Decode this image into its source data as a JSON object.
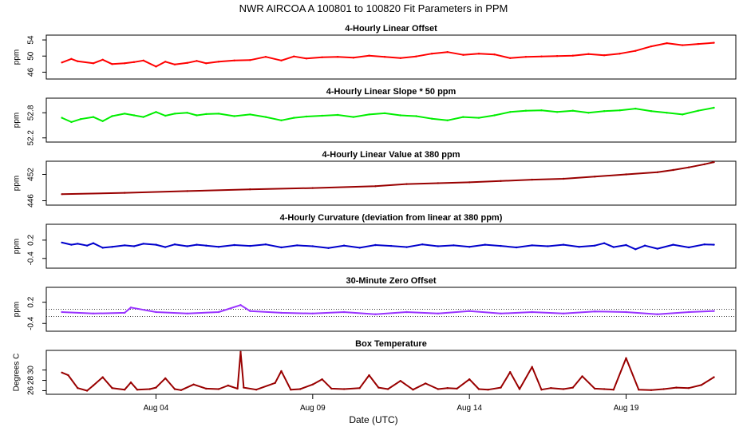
{
  "title": "NWR   AIRCOA A   100801 to 100820   Fit Parameters in PPM",
  "xlabel": "Date (UTC)",
  "x_axis": {
    "ticks": [
      "Aug 04",
      "Aug 09",
      "Aug 14",
      "Aug 19"
    ],
    "tick_days": [
      4,
      9,
      14,
      19
    ],
    "range_days": [
      0.5,
      22.5
    ]
  },
  "chart_data": [
    {
      "type": "line",
      "title": "4-Hourly Linear Offset",
      "ylabel": "ppm",
      "color": "#ff0000",
      "yticks": [
        "46",
        "50",
        "54"
      ],
      "ytick_values": [
        46,
        50,
        54
      ],
      "ylim": [
        44.3,
        55.2
      ],
      "series": [
        {
          "x": [
            1,
            1.3,
            1.5,
            2,
            2.3,
            2.6,
            3,
            3.3,
            3.6,
            4,
            4.3,
            4.6,
            5,
            5.3,
            5.6,
            6,
            6.5,
            7,
            7.5,
            8,
            8.4,
            8.8,
            9.3,
            9.8,
            10.3,
            10.8,
            11.3,
            11.8,
            12.3,
            12.8,
            13.3,
            13.8,
            14.3,
            14.8,
            15.3,
            15.8,
            16.3,
            16.8,
            17.3,
            17.8,
            18.3,
            18.8,
            19.3,
            19.8,
            20.3,
            20.8,
            21.3,
            21.8
          ],
          "y": [
            48.4,
            49.3,
            48.7,
            48.2,
            49.1,
            48.0,
            48.2,
            48.5,
            48.9,
            47.4,
            48.6,
            47.9,
            48.3,
            48.8,
            48.2,
            48.6,
            48.9,
            49.0,
            49.8,
            48.9,
            49.9,
            49.4,
            49.7,
            49.8,
            49.6,
            50.1,
            49.8,
            49.5,
            49.9,
            50.6,
            51.0,
            50.3,
            50.6,
            50.4,
            49.5,
            49.8,
            49.9,
            50.0,
            50.1,
            50.5,
            50.2,
            50.6,
            51.3,
            52.4,
            53.2,
            52.7,
            53.0,
            53.3
          ]
        }
      ]
    },
    {
      "type": "line",
      "title": "4-Hourly Linear Slope * 50 ppm",
      "ylabel": "ppm",
      "color": "#00ee00",
      "yticks": [
        "52.2",
        "52.8"
      ],
      "ytick_values": [
        52.2,
        52.8
      ],
      "ylim": [
        52.1,
        53.15
      ],
      "series": [
        {
          "x": [
            1,
            1.3,
            1.6,
            2,
            2.3,
            2.6,
            3,
            3.3,
            3.6,
            4,
            4.3,
            4.6,
            5,
            5.3,
            5.6,
            6,
            6.5,
            7,
            7.5,
            8,
            8.4,
            8.8,
            9.3,
            9.8,
            10.3,
            10.8,
            11.3,
            11.8,
            12.3,
            12.8,
            13.3,
            13.8,
            14.3,
            14.8,
            15.3,
            15.8,
            16.3,
            16.8,
            17.3,
            17.8,
            18.3,
            18.8,
            19.3,
            19.8,
            20.3,
            20.8,
            21.3,
            21.8
          ],
          "y": [
            52.68,
            52.58,
            52.65,
            52.7,
            52.6,
            52.72,
            52.78,
            52.74,
            52.7,
            52.82,
            52.73,
            52.78,
            52.8,
            52.74,
            52.77,
            52.78,
            52.72,
            52.76,
            52.7,
            52.62,
            52.68,
            52.71,
            52.73,
            52.75,
            52.7,
            52.76,
            52.79,
            52.74,
            52.72,
            52.66,
            52.62,
            52.7,
            52.68,
            52.74,
            52.82,
            52.85,
            52.86,
            52.82,
            52.85,
            52.8,
            52.84,
            52.86,
            52.9,
            52.84,
            52.8,
            52.76,
            52.85,
            52.92
          ]
        }
      ]
    },
    {
      "type": "line",
      "title": "4-Hourly Linear Value at 380 ppm",
      "ylabel": "ppm",
      "color": "#990000",
      "yticks": [
        "446",
        "452"
      ],
      "ytick_values": [
        446,
        452
      ],
      "ylim": [
        445,
        455
      ],
      "series": [
        {
          "x": [
            1,
            3,
            5,
            7,
            9,
            11,
            12,
            13,
            14,
            15,
            16,
            17,
            18,
            19,
            20,
            20.5,
            21,
            21.5,
            21.8
          ],
          "y": [
            447.5,
            447.8,
            448.2,
            448.6,
            448.9,
            449.3,
            449.8,
            450.0,
            450.2,
            450.5,
            450.8,
            451.0,
            451.5,
            452.0,
            452.5,
            453.0,
            453.6,
            454.3,
            454.8
          ]
        }
      ]
    },
    {
      "type": "line",
      "title": "4-Hourly Curvature (deviation from linear at 380 ppm)",
      "ylabel": "ppm",
      "color": "#0000cc",
      "yticks": [
        "-0.4",
        "0.2"
      ],
      "ytick_values": [
        -0.4,
        0.2
      ],
      "ylim": [
        -0.72,
        0.72
      ],
      "series": [
        {
          "x": [
            1,
            1.3,
            1.5,
            1.8,
            2,
            2.3,
            2.6,
            3,
            3.3,
            3.6,
            4,
            4.3,
            4.6,
            5,
            5.3,
            5.6,
            6,
            6.5,
            7,
            7.5,
            8,
            8.5,
            9,
            9.5,
            10,
            10.5,
            11,
            11.5,
            12,
            12.5,
            13,
            13.5,
            14,
            14.5,
            15,
            15.5,
            16,
            16.5,
            17,
            17.5,
            18,
            18.3,
            18.6,
            19,
            19.3,
            19.6,
            20,
            20.5,
            21,
            21.5,
            21.8
          ],
          "y": [
            0.12,
            0.05,
            0.08,
            0.02,
            0.1,
            -0.05,
            -0.02,
            0.03,
            0.0,
            0.08,
            0.05,
            -0.03,
            0.06,
            0.0,
            0.05,
            0.02,
            -0.02,
            0.04,
            0.01,
            0.06,
            -0.04,
            0.03,
            0.0,
            -0.06,
            0.02,
            -0.05,
            0.04,
            0.01,
            -0.03,
            0.06,
            0.0,
            0.03,
            -0.02,
            0.05,
            0.01,
            -0.04,
            0.03,
            0.0,
            0.05,
            -0.02,
            0.02,
            0.1,
            -0.03,
            0.04,
            -0.1,
            0.02,
            -0.08,
            0.05,
            -0.04,
            0.06,
            0.05
          ]
        }
      ]
    },
    {
      "type": "line",
      "title": "30-Minute Zero Offset",
      "ylabel": "ppm",
      "color": "#9933ff",
      "yticks": [
        "-0.4",
        "0.2"
      ],
      "ytick_values": [
        -0.4,
        0.2
      ],
      "ylim": [
        -0.62,
        0.62
      ],
      "ref_lines": [
        0.0,
        -0.2
      ],
      "series": [
        {
          "x": [
            1,
            2,
            3,
            3.2,
            4,
            5,
            6,
            6.7,
            7,
            8,
            9,
            10,
            11,
            12,
            13,
            14,
            15,
            16,
            17,
            18,
            19,
            20,
            21,
            21.8
          ],
          "y": [
            -0.08,
            -0.12,
            -0.1,
            0.05,
            -0.08,
            -0.12,
            -0.08,
            0.12,
            -0.05,
            -0.1,
            -0.12,
            -0.08,
            -0.14,
            -0.08,
            -0.12,
            -0.05,
            -0.12,
            -0.08,
            -0.12,
            -0.06,
            -0.08,
            -0.14,
            -0.08,
            -0.05
          ]
        }
      ]
    },
    {
      "type": "line",
      "title": "Box Temperature",
      "ylabel": "Degrees C",
      "color": "#990000",
      "yticks": [
        "26",
        "28",
        "30"
      ],
      "ytick_values": [
        26,
        28,
        30
      ],
      "ylim": [
        25.3,
        33.8
      ],
      "series": [
        {
          "x": [
            1,
            1.2,
            1.5,
            1.8,
            2,
            2.3,
            2.6,
            3,
            3.2,
            3.4,
            3.8,
            4,
            4.3,
            4.6,
            4.8,
            5.2,
            5.6,
            6,
            6.3,
            6.6,
            6.7,
            6.8,
            7.2,
            7.8,
            8,
            8.3,
            8.6,
            9,
            9.3,
            9.6,
            10,
            10.5,
            10.8,
            11.1,
            11.4,
            11.8,
            12.2,
            12.6,
            13,
            13.3,
            13.6,
            14,
            14.3,
            14.6,
            15,
            15.3,
            15.6,
            16,
            16.3,
            16.6,
            17,
            17.3,
            17.6,
            18,
            18.3,
            18.6,
            19,
            19.4,
            19.8,
            20.2,
            20.6,
            21,
            21.4,
            21.8
          ],
          "y": [
            29.5,
            29.0,
            26.5,
            26.0,
            27.0,
            28.6,
            26.5,
            26.2,
            27.6,
            26.2,
            26.3,
            26.6,
            28.4,
            26.3,
            26.1,
            27.2,
            26.4,
            26.3,
            27.0,
            26.4,
            33.5,
            26.6,
            26.2,
            27.5,
            29.8,
            26.2,
            26.3,
            27.2,
            28.2,
            26.4,
            26.3,
            26.5,
            29.0,
            26.6,
            26.3,
            27.9,
            26.2,
            27.4,
            26.3,
            26.5,
            26.4,
            28.2,
            26.3,
            26.2,
            26.6,
            29.6,
            26.3,
            30.6,
            26.2,
            26.5,
            26.3,
            26.6,
            28.8,
            26.4,
            26.3,
            26.2,
            32.3,
            26.2,
            26.1,
            26.3,
            26.6,
            26.5,
            27.1,
            28.6
          ]
        }
      ]
    }
  ]
}
